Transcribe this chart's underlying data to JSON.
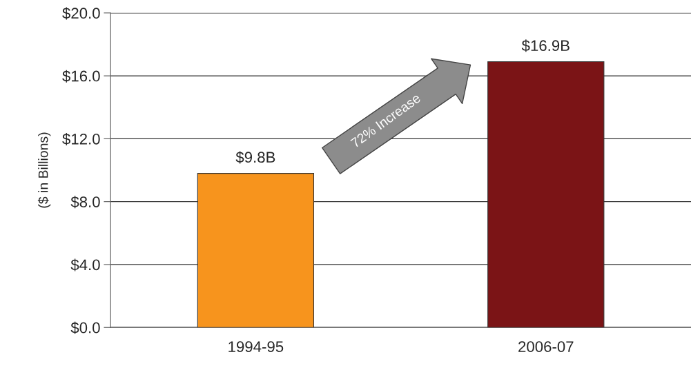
{
  "chart_data": {
    "type": "bar",
    "ylabel": "($ in Billions)",
    "categories": [
      "1994-95",
      "2006-07"
    ],
    "values": [
      9.8,
      16.9
    ],
    "colors": [
      "#f7941d",
      "#7b1416"
    ],
    "value_labels": [
      "$9.8B",
      "$16.9B"
    ],
    "ylim": [
      0,
      20
    ],
    "yticks": [
      {
        "value": 0,
        "label": "$0.0"
      },
      {
        "value": 4,
        "label": "$4.0"
      },
      {
        "value": 8,
        "label": "$8.0"
      },
      {
        "value": 12,
        "label": "$12.0"
      },
      {
        "value": 16,
        "label": "$16.0"
      },
      {
        "value": 20,
        "label": "$20.0"
      }
    ],
    "grid": "y",
    "annotations": [
      "72% Increase"
    ]
  }
}
